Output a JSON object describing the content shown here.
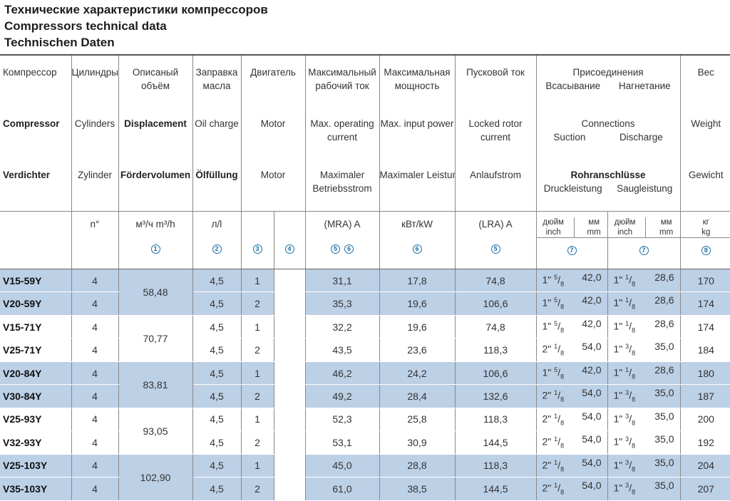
{
  "titles": [
    "Технические характеристики компрессоров",
    "Compressors technical data",
    "Technischen Daten"
  ],
  "header": {
    "ru": [
      "Компрессор",
      "Цилиндры",
      "Описаный объём",
      "Заправка масла",
      "Двигатель",
      "Максимальный рабочий ток",
      "Максимальная мощность",
      "Пусковой ток",
      "Присоединения",
      "Вес"
    ],
    "ru_conn_sub": [
      "Всасывание",
      "Нагнетание"
    ],
    "en": [
      "Compressor",
      "Cylinders",
      "Displacement",
      "Oil charge",
      "Motor",
      "Max. operating current",
      "Max. input power",
      "Locked rotor current",
      "Connections",
      "Weight"
    ],
    "en_conn_sub": [
      "Suction",
      "Discharge"
    ],
    "de": [
      "Verdichter",
      "Zylinder",
      "Fördervolumen",
      "Ölfüllung",
      "Motor",
      "Maximaler Betriebsstrom",
      "Maximaler Leistungsaufnahme",
      "Anlaufstrom",
      "Rohranschlüsse",
      "Gewicht"
    ],
    "de_conn_sub": [
      "Druckleistung",
      "Saugleistung"
    ],
    "units": {
      "cylinders": "n°",
      "displacement": "м³/ч  m³/h",
      "oil": "л/l",
      "mra": "(MRA) A",
      "power": "кВт/kW",
      "lra": "(LRA) A",
      "conn_in": [
        "дюйм",
        "inch"
      ],
      "conn_mm": [
        "мм",
        "mm"
      ],
      "weight": [
        "кг",
        "kg"
      ]
    },
    "notes": [
      "1",
      "2",
      "3",
      "4",
      "5",
      "6",
      "6",
      "5",
      "7",
      "7",
      "8"
    ]
  },
  "rows": [
    {
      "model": "V15-59Y",
      "cyl": "4",
      "oil": "4,5",
      "motor": "1",
      "mra": "31,1",
      "power": "17,8",
      "lra": "74,8",
      "s_in": "1\"",
      "s_n": "5",
      "s_d": "8",
      "s_mm": "42,0",
      "d_in": "1\"",
      "d_n": "1",
      "d_d": "8",
      "d_mm": "28,6",
      "weight": "170"
    },
    {
      "model": "V20-59Y",
      "cyl": "4",
      "oil": "4,5",
      "motor": "2",
      "mra": "35,3",
      "power": "19,6",
      "lra": "106,6",
      "s_in": "1\"",
      "s_n": "5",
      "s_d": "8",
      "s_mm": "42,0",
      "d_in": "1\"",
      "d_n": "1",
      "d_d": "8",
      "d_mm": "28,6",
      "weight": "174"
    },
    {
      "model": "V15-71Y",
      "cyl": "4",
      "oil": "4,5",
      "motor": "1",
      "mra": "32,2",
      "power": "19,6",
      "lra": "74,8",
      "s_in": "1\"",
      "s_n": "5",
      "s_d": "8",
      "s_mm": "42,0",
      "d_in": "1\"",
      "d_n": "1",
      "d_d": "8",
      "d_mm": "28,6",
      "weight": "174"
    },
    {
      "model": "V25-71Y",
      "cyl": "4",
      "oil": "4,5",
      "motor": "2",
      "mra": "43,5",
      "power": "23,6",
      "lra": "118,3",
      "s_in": "2\"",
      "s_n": "1",
      "s_d": "8",
      "s_mm": "54,0",
      "d_in": "1\"",
      "d_n": "3",
      "d_d": "8",
      "d_mm": "35,0",
      "weight": "184"
    },
    {
      "model": "V20-84Y",
      "cyl": "4",
      "oil": "4,5",
      "motor": "1",
      "mra": "46,2",
      "power": "24,2",
      "lra": "106,6",
      "s_in": "1\"",
      "s_n": "5",
      "s_d": "8",
      "s_mm": "42,0",
      "d_in": "1\"",
      "d_n": "1",
      "d_d": "8",
      "d_mm": "28,6",
      "weight": "180"
    },
    {
      "model": "V30-84Y",
      "cyl": "4",
      "oil": "4,5",
      "motor": "2",
      "mra": "49,2",
      "power": "28,4",
      "lra": "132,6",
      "s_in": "2\"",
      "s_n": "1",
      "s_d": "8",
      "s_mm": "54,0",
      "d_in": "1\"",
      "d_n": "3",
      "d_d": "8",
      "d_mm": "35,0",
      "weight": "187"
    },
    {
      "model": "V25-93Y",
      "cyl": "4",
      "oil": "4,5",
      "motor": "1",
      "mra": "52,3",
      "power": "25,8",
      "lra": "118,3",
      "s_in": "2\"",
      "s_n": "1",
      "s_d": "8",
      "s_mm": "54,0",
      "d_in": "1\"",
      "d_n": "3",
      "d_d": "8",
      "d_mm": "35,0",
      "weight": "200"
    },
    {
      "model": "V32-93Y",
      "cyl": "4",
      "oil": "4,5",
      "motor": "2",
      "mra": "53,1",
      "power": "30,9",
      "lra": "144,5",
      "s_in": "2\"",
      "s_n": "1",
      "s_d": "8",
      "s_mm": "54,0",
      "d_in": "1\"",
      "d_n": "3",
      "d_d": "8",
      "d_mm": "35,0",
      "weight": "192"
    },
    {
      "model": "V25-103Y",
      "cyl": "4",
      "oil": "4,5",
      "motor": "1",
      "mra": "45,0",
      "power": "28,8",
      "lra": "118,3",
      "s_in": "2\"",
      "s_n": "1",
      "s_d": "8",
      "s_mm": "54,0",
      "d_in": "1\"",
      "d_n": "3",
      "d_d": "8",
      "d_mm": "35,0",
      "weight": "204"
    },
    {
      "model": "V35-103Y",
      "cyl": "4",
      "oil": "4,5",
      "motor": "2",
      "mra": "61,0",
      "power": "38,5",
      "lra": "144,5",
      "s_in": "2\"",
      "s_n": "1",
      "s_d": "8",
      "s_mm": "54,0",
      "d_in": "1\"",
      "d_n": "3",
      "d_d": "8",
      "d_mm": "35,0",
      "weight": "207"
    }
  ],
  "displacements": [
    "58,48",
    "70,77",
    "83,81",
    "93,05",
    "102,90"
  ],
  "colors": {
    "row_blue": "#bcd0e6",
    "note_blue": "#1a6fa8"
  }
}
